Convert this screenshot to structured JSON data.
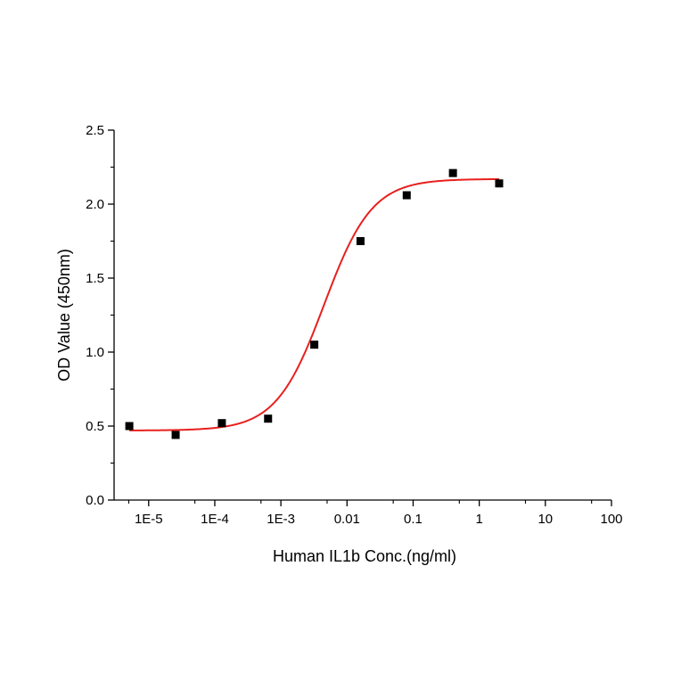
{
  "chart_data": {
    "type": "scatter",
    "title": "",
    "xlabel": "Human IL1b Conc.(ng/ml)",
    "ylabel": "OD Value (450nm)",
    "x_scale": "log",
    "xlim": [
      3e-06,
      100
    ],
    "ylim": [
      0,
      2.5
    ],
    "x_ticks": [
      {
        "value": 1e-05,
        "label": "1E-5"
      },
      {
        "value": 0.0001,
        "label": "1E-4"
      },
      {
        "value": 0.001,
        "label": "1E-3"
      },
      {
        "value": 0.01,
        "label": "0.01"
      },
      {
        "value": 0.1,
        "label": "0.1"
      },
      {
        "value": 1,
        "label": "1"
      },
      {
        "value": 10,
        "label": "10"
      },
      {
        "value": 100,
        "label": "100"
      }
    ],
    "y_ticks": [
      {
        "value": 0.0,
        "label": "0.0"
      },
      {
        "value": 0.5,
        "label": "0.5"
      },
      {
        "value": 1.0,
        "label": "1.0"
      },
      {
        "value": 1.5,
        "label": "1.5"
      },
      {
        "value": 2.0,
        "label": "2.0"
      },
      {
        "value": 2.5,
        "label": "2.5"
      }
    ],
    "grid": false,
    "legend": "none",
    "series": [
      {
        "kind": "points",
        "marker": "square",
        "color": "#000000",
        "x": [
          5.1e-06,
          2.56e-05,
          0.000128,
          0.00064,
          0.0032,
          0.016,
          0.08,
          0.4,
          2
        ],
        "y": [
          0.5,
          0.44,
          0.52,
          0.55,
          1.05,
          1.75,
          2.06,
          2.21,
          2.14
        ]
      },
      {
        "kind": "fit",
        "model": "4PL",
        "color": "#e8201e",
        "x_range": [
          5.1e-06,
          2
        ],
        "bottom": 0.47,
        "top": 2.17,
        "ec50": 0.0045,
        "hill": 1.2
      }
    ]
  }
}
